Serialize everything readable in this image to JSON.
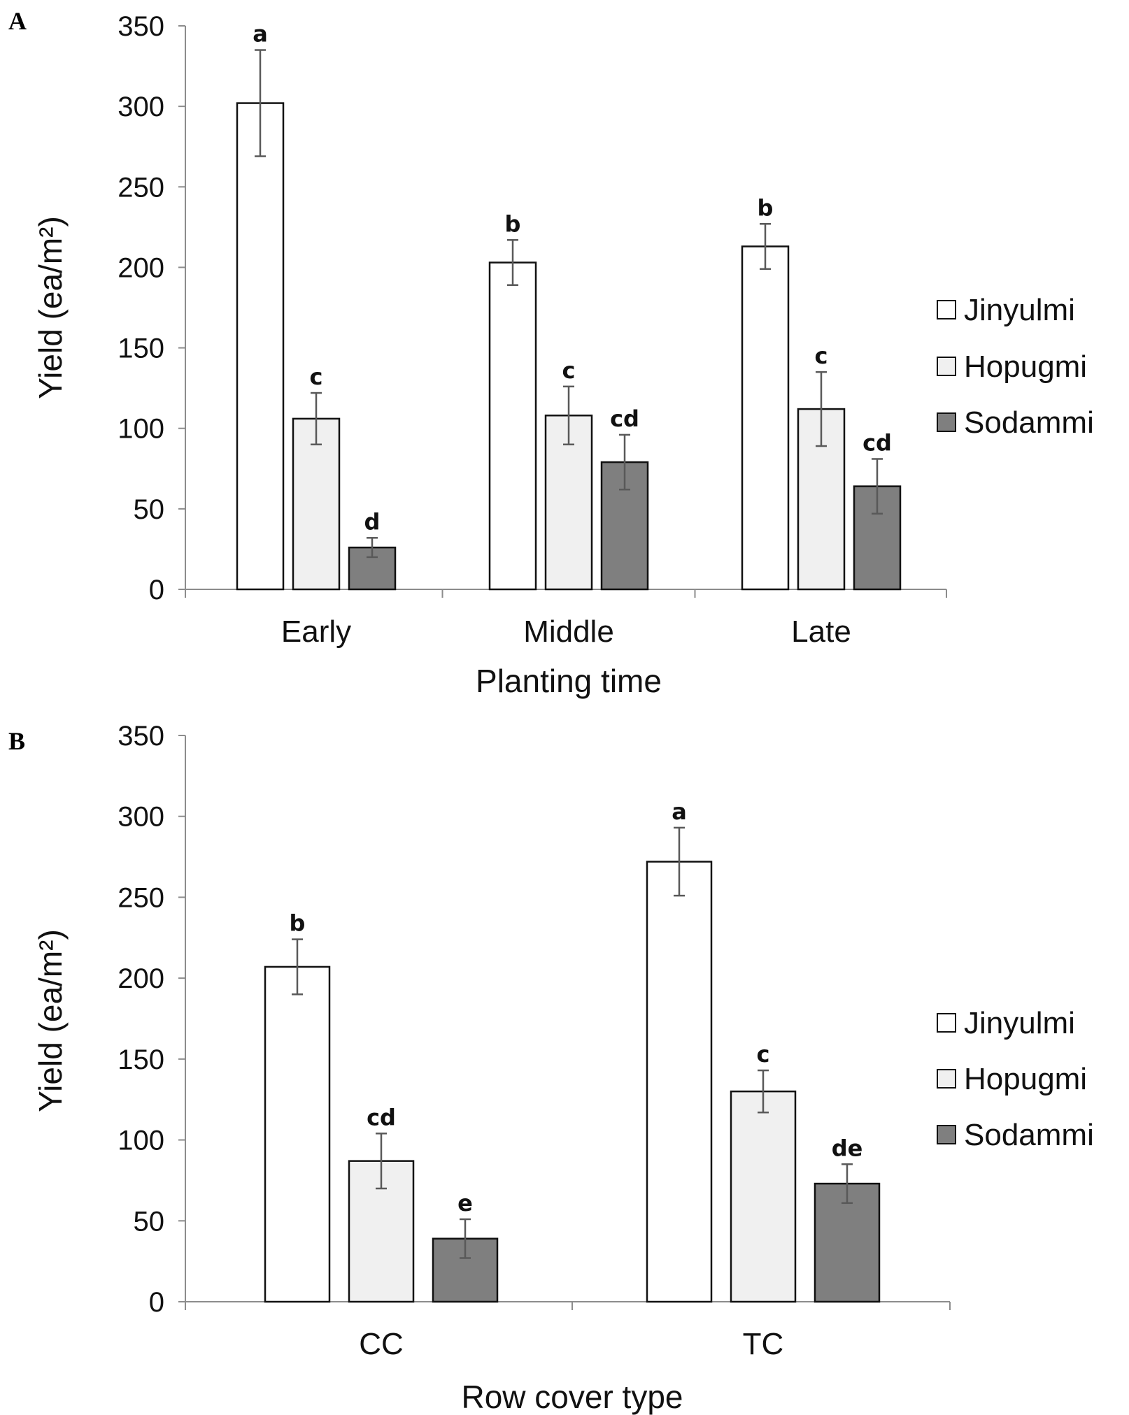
{
  "colors": {
    "Jinyulmi": "#ffffff",
    "Hopugmi": "#f0f0f0",
    "Sodammi": "#7f7f7f",
    "outline": "#111111",
    "axis": "#8c8c8c",
    "errorbar": "#595959"
  },
  "chart_data": [
    {
      "panel": "A",
      "type": "bar",
      "categories": [
        "Early",
        "Middle",
        "Late"
      ],
      "xlabel": "Planting time",
      "ylabel": "Yield (ea/m²)",
      "ylim": [
        0,
        350
      ],
      "yticks": [
        "0",
        "50",
        "100",
        "150",
        "200",
        "250",
        "300",
        "350"
      ],
      "legend_position": "right",
      "series": [
        {
          "name": "Jinyulmi",
          "values": [
            302,
            203,
            213
          ],
          "errors": [
            33,
            14,
            14
          ],
          "labels": [
            "a",
            "b",
            "b"
          ]
        },
        {
          "name": "Hopugmi",
          "values": [
            106,
            108,
            112
          ],
          "errors": [
            16,
            18,
            23
          ],
          "labels": [
            "c",
            "c",
            "c"
          ]
        },
        {
          "name": "Sodammi",
          "values": [
            26,
            79,
            64
          ],
          "errors": [
            6,
            17,
            17
          ],
          "labels": [
            "d",
            "cd",
            "cd"
          ]
        }
      ]
    },
    {
      "panel": "B",
      "type": "bar",
      "categories": [
        "CC",
        "TC"
      ],
      "xlabel": "Row cover type",
      "ylabel": "Yield (ea/m²)",
      "ylim": [
        0,
        350
      ],
      "yticks": [
        "0",
        "50",
        "100",
        "150",
        "200",
        "250",
        "300",
        "350"
      ],
      "legend_position": "right",
      "series": [
        {
          "name": "Jinyulmi",
          "values": [
            207,
            272
          ],
          "errors": [
            17,
            21
          ],
          "labels": [
            "b",
            "a"
          ]
        },
        {
          "name": "Hopugmi",
          "values": [
            87,
            130
          ],
          "errors": [
            17,
            13
          ],
          "labels": [
            "cd",
            "c"
          ]
        },
        {
          "name": "Sodammi",
          "values": [
            39,
            73
          ],
          "errors": [
            12,
            12
          ],
          "labels": [
            "e",
            "de"
          ]
        }
      ]
    }
  ]
}
